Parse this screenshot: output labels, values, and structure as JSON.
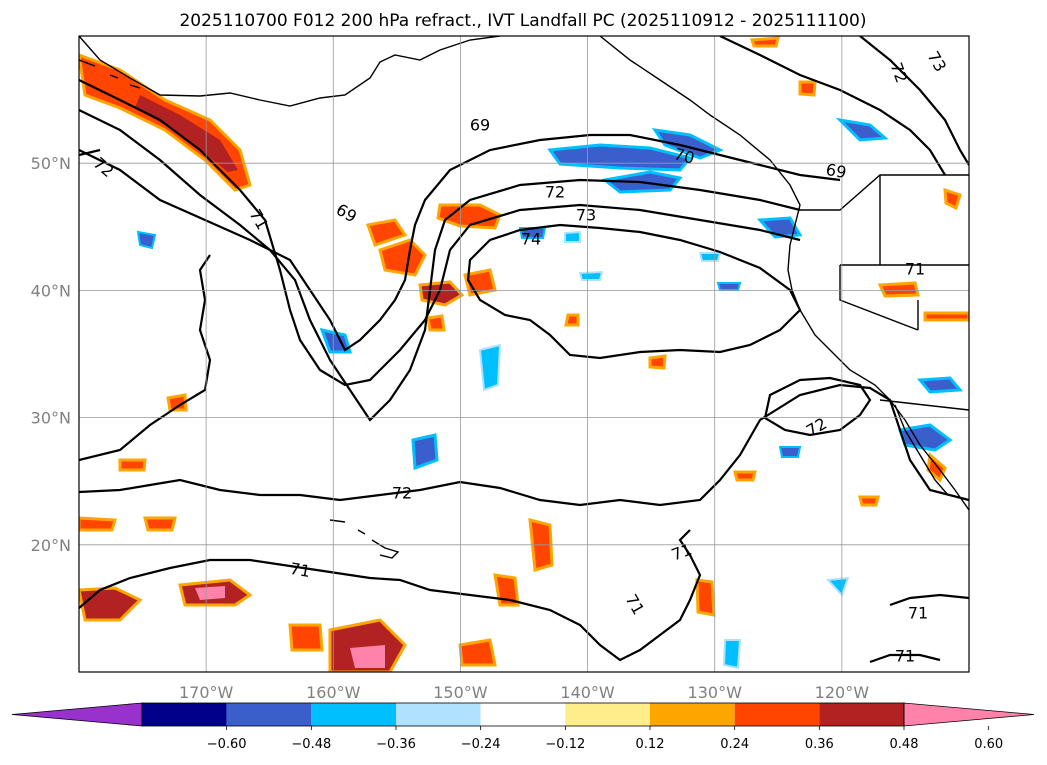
{
  "title": "2025110700 F012 200 hPa refract., IVT Landfall PC (2025110912 - 2025111100)",
  "chart_data": {
    "type": "heatmap",
    "projection": "lat-lon map",
    "lon_range": [
      -180,
      -110
    ],
    "lat_range": [
      10,
      60
    ],
    "lat_ticks": [
      {
        "value": 50,
        "label": "50°N"
      },
      {
        "value": 40,
        "label": "40°N"
      },
      {
        "value": 30,
        "label": "30°N"
      },
      {
        "value": 20,
        "label": "20°N"
      }
    ],
    "lon_ticks": [
      {
        "value": -170,
        "label": "170°W"
      },
      {
        "value": -160,
        "label": "160°W"
      },
      {
        "value": -150,
        "label": "150°W"
      },
      {
        "value": -140,
        "label": "140°W"
      },
      {
        "value": -130,
        "label": "130°W"
      },
      {
        "value": -120,
        "label": "120°W"
      }
    ],
    "grid": true,
    "contour_labels": [
      "72",
      "69",
      "71",
      "72",
      "73",
      "74",
      "69",
      "70",
      "72",
      "69",
      "73",
      "71",
      "72",
      "71",
      "72",
      "71",
      "71",
      "71"
    ],
    "colorbar": {
      "extend": "both",
      "levels": [
        -0.72,
        -0.6,
        -0.48,
        -0.36,
        -0.24,
        -0.12,
        0.12,
        0.24,
        0.36,
        0.48,
        0.6,
        0.72
      ],
      "tick_labels": [
        "−0.60",
        "−0.48",
        "−0.36",
        "−0.24",
        "−0.12",
        "0.12",
        "0.24",
        "0.36",
        "0.48",
        "0.60"
      ],
      "colors": [
        "#9932cc",
        "#00008b",
        "#3a5fcd",
        "#00bfff",
        "#b0e2ff",
        "#ffffff",
        "#ffec8b",
        "#ffa500",
        "#ff4500",
        "#b22222",
        "#ff82ab"
      ]
    }
  }
}
